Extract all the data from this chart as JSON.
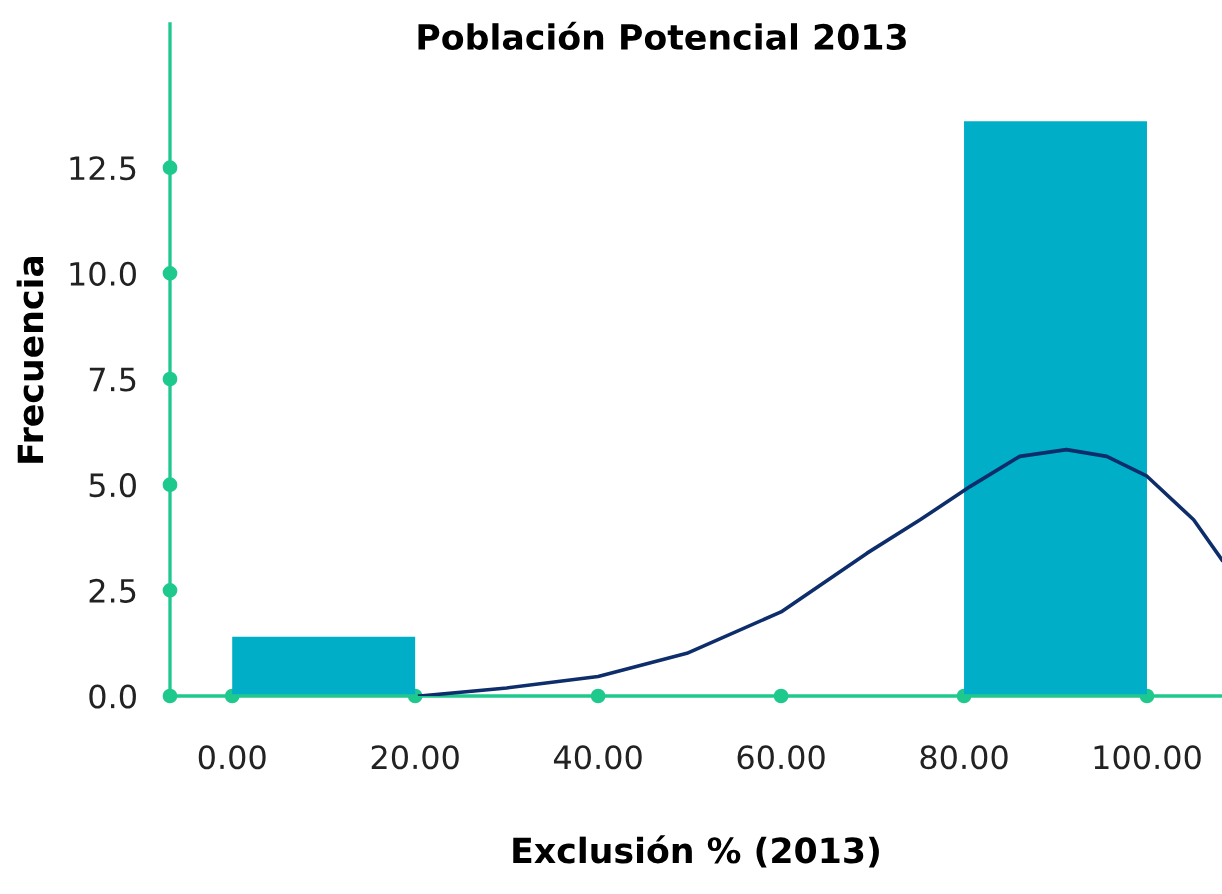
{
  "chart_data": {
    "type": "histogram",
    "title": "Población Potencial 2013",
    "xlabel": "Exclusión % (2013)",
    "ylabel": "Frecuencia",
    "bins": [
      0,
      20,
      40,
      60,
      80,
      100
    ],
    "values": [
      1.4,
      0,
      0,
      0,
      13.6
    ],
    "color": "#00aec7",
    "series": [
      {
        "type": "line",
        "color": "#0d2d6b",
        "x": [
          20.5,
          30.0,
          40,
          49.7,
          60,
          69.4,
          75.2,
          80.7,
          86.1,
          91.2,
          95.6,
          100,
          105.1,
          108.2
        ],
        "values": [
          0,
          0.19,
          0.46,
          1.01,
          1.99,
          3.38,
          4.17,
          4.96,
          5.67,
          5.83,
          5.67,
          5.2,
          4.17,
          3.22
        ]
      }
    ],
    "xlim": [
      -6.8,
      108.2
    ],
    "ylim": [
      0,
      15.9
    ],
    "xticks": [
      {
        "value": 0,
        "label": "0.00"
      },
      {
        "value": 20,
        "label": "20.00"
      },
      {
        "value": 40,
        "label": "40.00"
      },
      {
        "value": 60,
        "label": "60.00"
      },
      {
        "value": 80,
        "label": "80.00"
      },
      {
        "value": 100,
        "label": "100.00"
      }
    ],
    "yticks": [
      {
        "value": 0,
        "label": "0.0"
      },
      2.5,
      {
        "value": 5,
        "label": "5.0"
      },
      7.5,
      {
        "value": 10,
        "label": "10.0"
      },
      12.5
    ],
    "grid": false,
    "legend": false
  }
}
